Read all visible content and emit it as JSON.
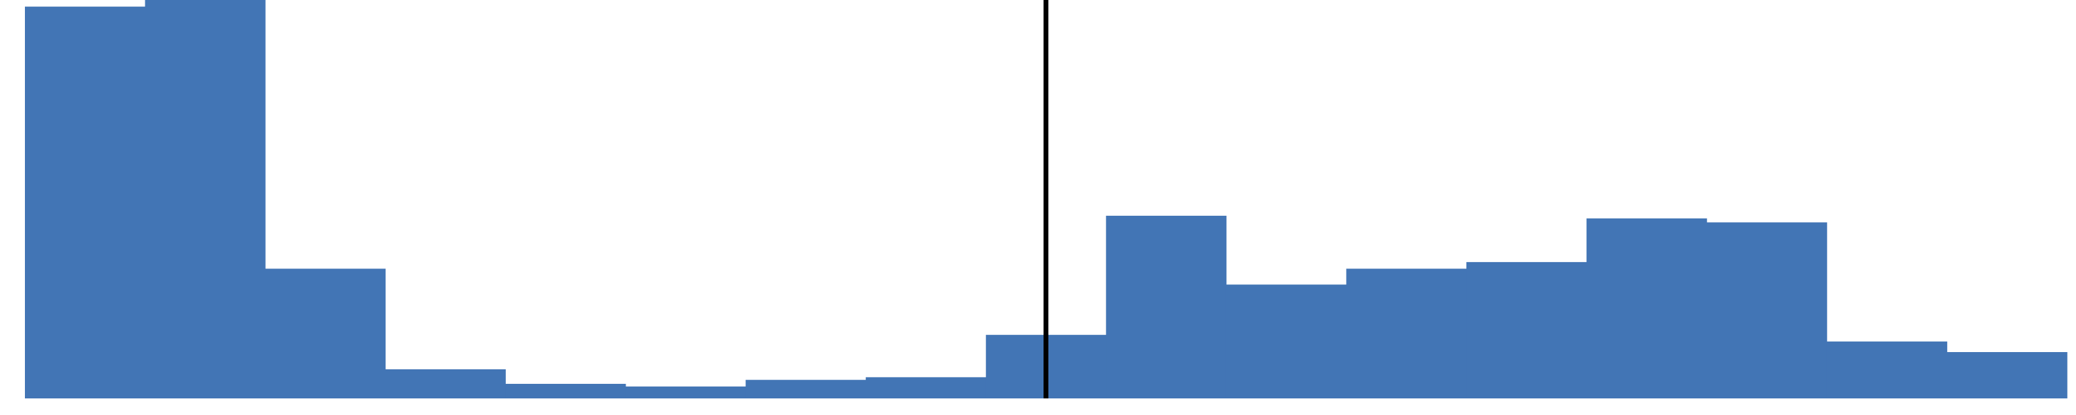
{
  "chart_data": {
    "type": "histogram",
    "bins": [
      0,
      1,
      2,
      3,
      4,
      5,
      6,
      7,
      8,
      9,
      10,
      11,
      12,
      13,
      14,
      15,
      16,
      17
    ],
    "values": [
      296,
      301,
      98,
      22,
      11,
      9,
      14,
      16,
      48,
      138,
      86,
      98,
      103,
      136,
      133,
      43,
      35
    ],
    "color": "#4275b5",
    "xlim": [
      0,
      17
    ],
    "ylim": [
      0,
      301
    ],
    "vline": 8.5,
    "vline_color": "#000000"
  }
}
